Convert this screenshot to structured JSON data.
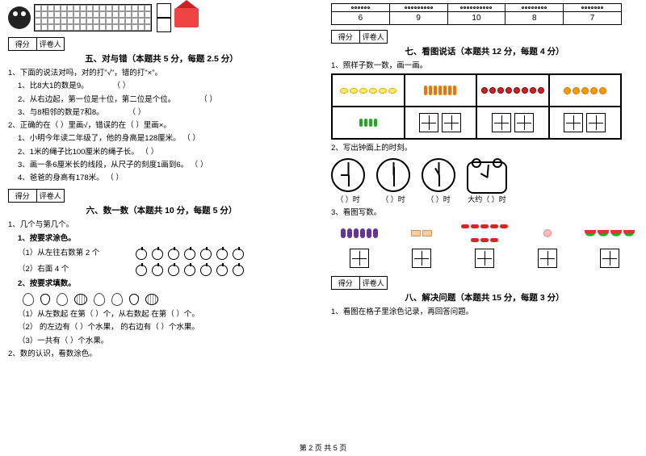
{
  "footer": "第 2 页 共 5 页",
  "score_labels": {
    "score": "得分",
    "reviewer": "评卷人"
  },
  "left": {
    "section5": {
      "title": "五、对与错（本题共 5 分，每题 2.5 分）",
      "q1": "1、下面的说法对吗，对的打\"√\"，错的打\"×\"。",
      "q1_items": [
        "1、比8大1的数是9。",
        "2、从右边起，第一位是十位，第二位是个位。",
        "3、与8相邻的数是7和8。"
      ],
      "q2": "2、正确的在（    ）里画√，错误的在（    ）里画×。",
      "q2_items": [
        "1、小明今年读二年级了，他的身高是128厘米。",
        "2、1米的绳子比100厘米的绳子长。",
        "3、画一条6厘米长的线段，从尺子的刻度1画到6。",
        "4、爸爸的身高有178米。"
      ]
    },
    "section6": {
      "title": "六、数一数（本题共 10 分，每题 5 分）",
      "q1": "1、几个与第几个。",
      "sub1": "1、按要求涂色。",
      "sub1a": "（1）从左往右数第 2 个",
      "sub1b": "（2）右面 4 个",
      "sub2": "2、按要求填数。",
      "sub2a": "（1）从左数起        在第（    ）个，从右数起        在第（    ）个。",
      "sub2b": "（2）      的左边有（    ）个水果，      的右边有（    ）个水果。",
      "sub2c": "（3）一共有（    ）个水果。",
      "q2": "2、数的认识，看数涂色。"
    }
  },
  "right": {
    "number_table": [
      "6",
      "9",
      "10",
      "8",
      "7"
    ],
    "dot_counts": [
      6,
      9,
      10,
      8,
      7
    ],
    "section7": {
      "title": "七、看图说话（本题共 12 分，每题 4 分）",
      "q1": "1、照样子数一数，画一画。",
      "q2": "2、写出钟面上的时刻。",
      "clock_labels": [
        "（    ）时",
        "（    ）时",
        "（    ）时",
        "大约（    ）时"
      ],
      "q3": "3、看图写数。"
    },
    "section8": {
      "title": "八、解决问题（本题共 15 分，每题 3 分）",
      "q1": "1、看图在格子里涂色记录，再回答问题。"
    },
    "veg_counts": {
      "lemon": 6,
      "carrot": 7,
      "tomato": 8,
      "orange": 5,
      "pepper": 4
    },
    "count_items": {
      "eggplant": 6,
      "cake": 2,
      "chili": 8,
      "peach": 1,
      "watermelon": 4
    }
  }
}
